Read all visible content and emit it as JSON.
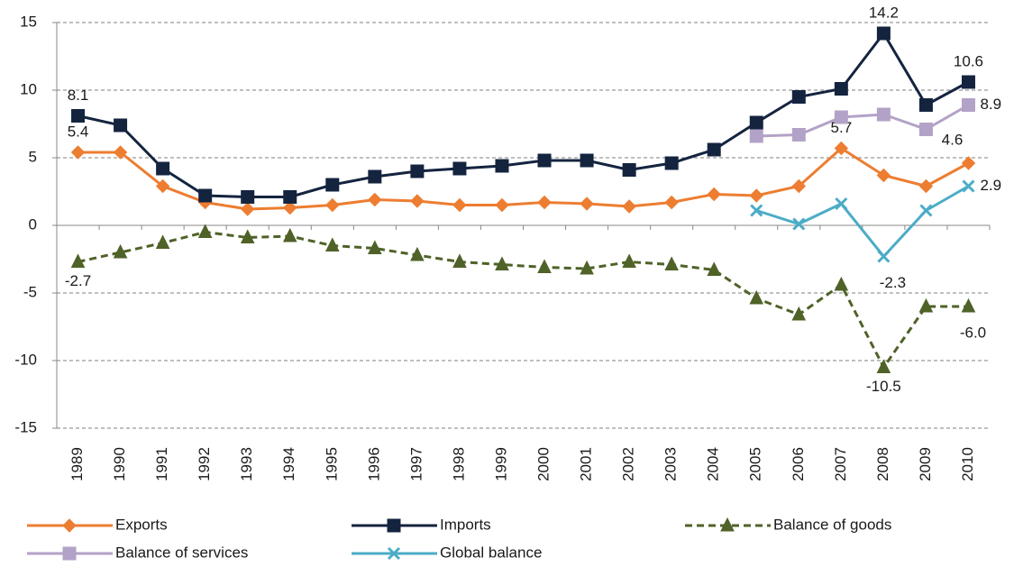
{
  "chart_data": {
    "type": "line",
    "categories": [
      "1989",
      "1990",
      "1991",
      "1992",
      "1993",
      "1994",
      "1995",
      "1996",
      "1997",
      "1998",
      "1999",
      "2000",
      "2001",
      "2002",
      "2003",
      "2004",
      "2005",
      "2006",
      "2007",
      "2008",
      "2009",
      "2010"
    ],
    "ylim": [
      -15,
      15
    ],
    "yticks": [
      -15,
      -10,
      -5,
      0,
      5,
      10,
      15
    ],
    "grid": true,
    "legend": "bottom",
    "series": [
      {
        "name": "Exports",
        "color": "#ED7D31",
        "marker": "diamond",
        "dash": false,
        "values": [
          5.4,
          5.4,
          2.9,
          1.7,
          1.2,
          1.3,
          1.5,
          1.9,
          1.8,
          1.5,
          1.5,
          1.7,
          1.6,
          1.4,
          1.7,
          2.3,
          2.2,
          2.9,
          5.7,
          3.7,
          2.9,
          4.6
        ],
        "value_labels": [
          "5.4",
          null,
          null,
          null,
          null,
          null,
          null,
          null,
          null,
          null,
          null,
          null,
          null,
          null,
          null,
          null,
          null,
          null,
          "5.7",
          null,
          null,
          "4.6"
        ]
      },
      {
        "name": "Imports",
        "color": "#14243F",
        "marker": "square",
        "dash": false,
        "values": [
          8.1,
          7.4,
          4.2,
          2.2,
          2.1,
          2.1,
          3.0,
          3.6,
          4.0,
          4.2,
          4.4,
          4.8,
          4.8,
          4.1,
          4.6,
          5.6,
          7.6,
          9.5,
          10.1,
          14.2,
          8.9,
          10.6
        ],
        "value_labels": [
          "8.1",
          null,
          null,
          null,
          null,
          null,
          null,
          null,
          null,
          null,
          null,
          null,
          null,
          null,
          null,
          null,
          null,
          null,
          null,
          "14.2",
          null,
          "10.6"
        ]
      },
      {
        "name": "Balance of goods",
        "color": "#4F6228",
        "marker": "triangle",
        "dash": true,
        "values": [
          -2.7,
          -2.0,
          -1.3,
          -0.5,
          -0.9,
          -0.8,
          -1.5,
          -1.7,
          -2.2,
          -2.7,
          -2.9,
          -3.1,
          -3.2,
          -2.7,
          -2.9,
          -3.3,
          -5.4,
          -6.6,
          -4.4,
          -10.5,
          -6.0,
          -6.0
        ],
        "value_labels": [
          "-2.7",
          null,
          null,
          null,
          null,
          null,
          null,
          null,
          null,
          null,
          null,
          null,
          null,
          null,
          null,
          null,
          null,
          null,
          null,
          "-10.5",
          null,
          "-6.0"
        ]
      },
      {
        "name": "Balance of services",
        "color": "#B3A2C7",
        "marker": "square",
        "dash": false,
        "values": [
          null,
          null,
          null,
          null,
          null,
          null,
          null,
          null,
          null,
          null,
          null,
          null,
          null,
          null,
          null,
          null,
          6.6,
          6.7,
          8.0,
          8.2,
          7.1,
          8.9
        ],
        "value_labels": [
          null,
          null,
          null,
          null,
          null,
          null,
          null,
          null,
          null,
          null,
          null,
          null,
          null,
          null,
          null,
          null,
          null,
          null,
          null,
          null,
          null,
          "8.9"
        ]
      },
      {
        "name": "Global balance",
        "color": "#4BACC6",
        "marker": "x",
        "dash": false,
        "values": [
          null,
          null,
          null,
          null,
          null,
          null,
          null,
          null,
          null,
          null,
          null,
          null,
          null,
          null,
          null,
          null,
          1.1,
          0.1,
          1.6,
          -2.3,
          1.1,
          2.9
        ],
        "value_labels": [
          null,
          null,
          null,
          null,
          null,
          null,
          null,
          null,
          null,
          null,
          null,
          null,
          null,
          null,
          null,
          null,
          null,
          null,
          null,
          "-2.3",
          null,
          "2.9"
        ]
      }
    ]
  }
}
